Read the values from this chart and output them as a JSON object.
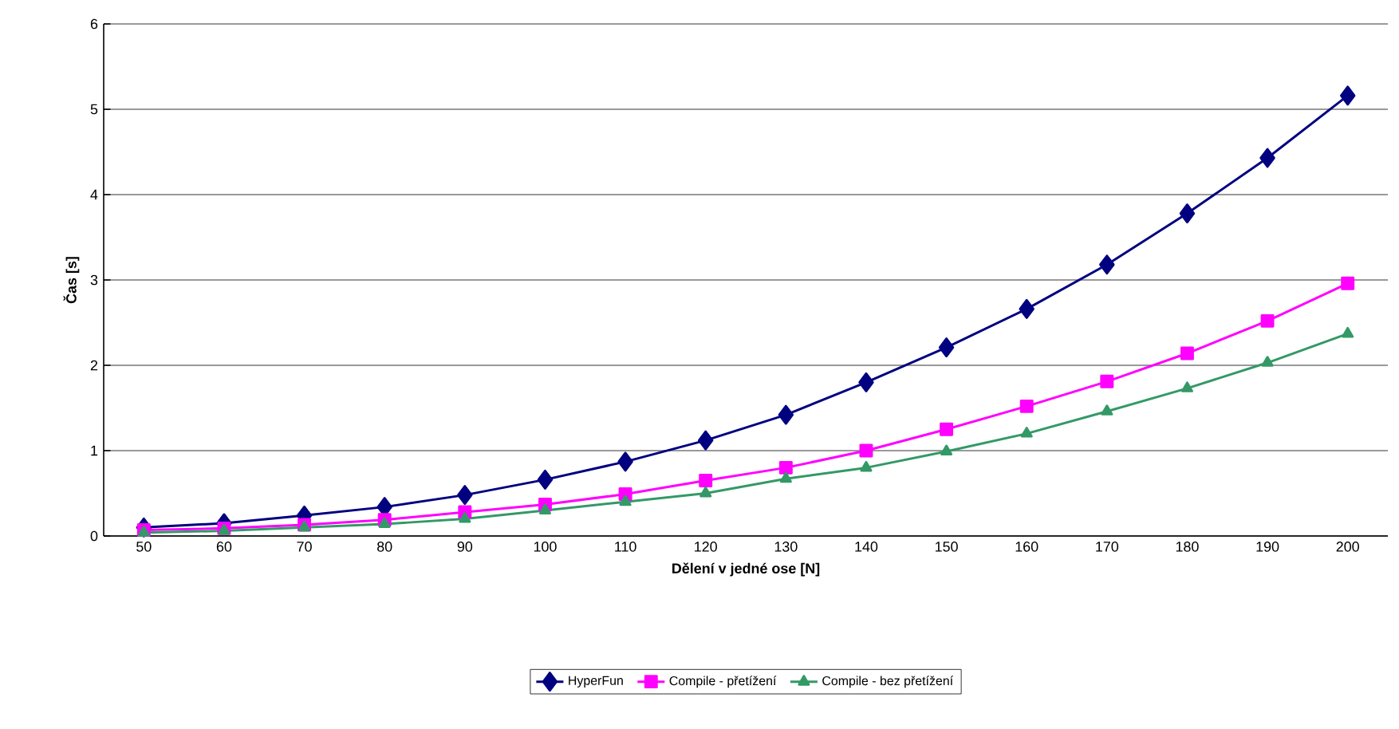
{
  "chart_data": {
    "type": "line",
    "xlabel": "Dělení v jedné ose [N]",
    "ylabel": "Čas [s]",
    "categories": [
      "50",
      "60",
      "70",
      "80",
      "90",
      "100",
      "110",
      "120",
      "130",
      "140",
      "150",
      "160",
      "170",
      "180",
      "190",
      "200"
    ],
    "ylim": [
      0,
      6
    ],
    "yticks": [
      0,
      1,
      2,
      3,
      4,
      5,
      6
    ],
    "grid": "y",
    "legend": "bottom",
    "series": [
      {
        "name": "HyperFun",
        "color": "#000080",
        "marker": "diamond",
        "values": [
          0.1,
          0.15,
          0.24,
          0.34,
          0.48,
          0.66,
          0.87,
          1.12,
          1.42,
          1.8,
          2.21,
          2.66,
          3.18,
          3.78,
          4.43,
          5.16
        ]
      },
      {
        "name": "Compile - přetížení",
        "color": "#ff00ff",
        "marker": "square",
        "values": [
          0.07,
          0.09,
          0.13,
          0.19,
          0.28,
          0.37,
          0.49,
          0.65,
          0.8,
          1.0,
          1.25,
          1.52,
          1.81,
          2.14,
          2.52,
          2.96
        ]
      },
      {
        "name": "Compile - bez přetížení",
        "color": "#339966",
        "marker": "triangle",
        "values": [
          0.04,
          0.06,
          0.1,
          0.14,
          0.2,
          0.3,
          0.4,
          0.5,
          0.67,
          0.8,
          0.99,
          1.2,
          1.46,
          1.73,
          2.03,
          2.37
        ]
      }
    ]
  }
}
